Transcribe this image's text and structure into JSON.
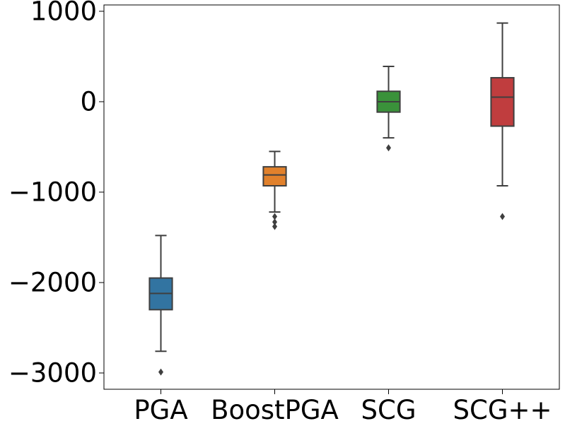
{
  "chart_data": {
    "type": "box",
    "title": "",
    "xlabel": "",
    "ylabel": "",
    "ylim": [
      -3180,
      1070
    ],
    "yticks": [
      {
        "value": 1000,
        "label": "1000"
      },
      {
        "value": 0,
        "label": "0"
      },
      {
        "value": -1000,
        "label": "−1000"
      },
      {
        "value": -2000,
        "label": "−2000"
      },
      {
        "value": -3000,
        "label": "−3000"
      }
    ],
    "grid": false,
    "series": [
      {
        "name": "PGA",
        "color": "#3274a1",
        "whisker_low": -2760,
        "q1": -2300,
        "median": -2120,
        "q3": -1950,
        "whisker_high": -1480,
        "outliers": [
          -2990
        ]
      },
      {
        "name": "BoostPGA",
        "color": "#e1812c",
        "whisker_low": -1220,
        "q1": -930,
        "median": -810,
        "q3": -720,
        "whisker_high": -550,
        "outliers": [
          -1270,
          -1330,
          -1380
        ]
      },
      {
        "name": "SCG",
        "color": "#3a923a",
        "whisker_low": -400,
        "q1": -115,
        "median": 0,
        "q3": 115,
        "whisker_high": 390,
        "outliers": [
          -510
        ]
      },
      {
        "name": "SCG++",
        "color": "#c03d3e",
        "whisker_low": -930,
        "q1": -270,
        "median": 50,
        "q3": 265,
        "whisker_high": 870,
        "outliers": [
          -1270
        ]
      }
    ]
  }
}
